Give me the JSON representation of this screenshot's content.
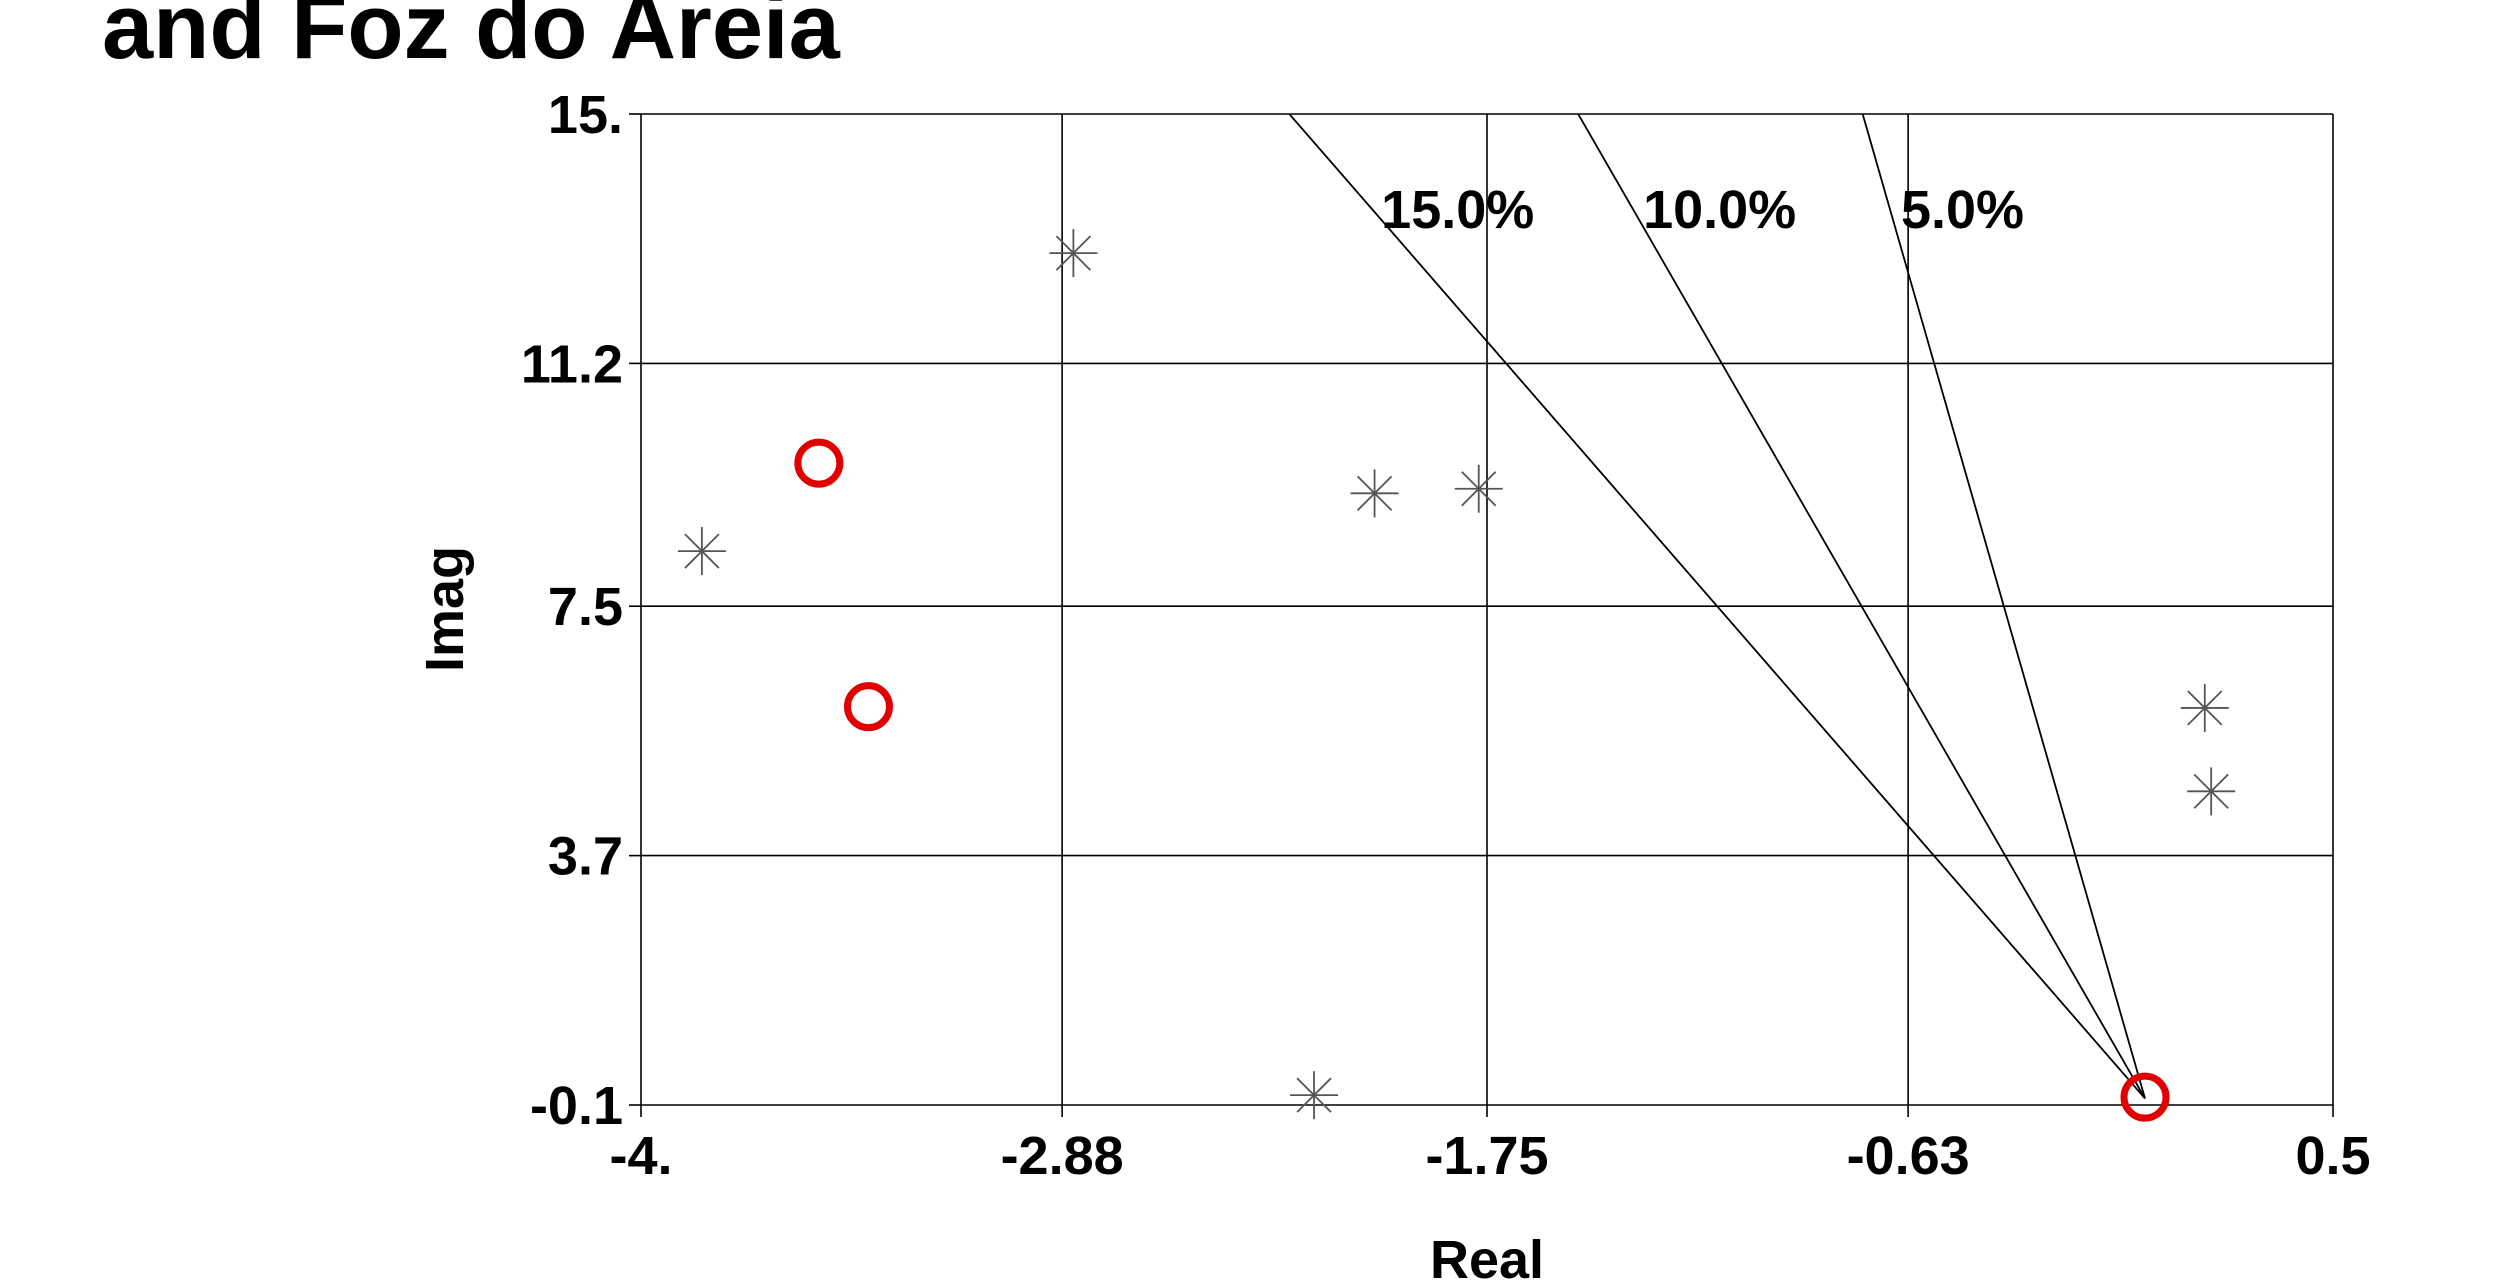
{
  "chart_data": {
    "type": "scatter",
    "title": "and Foz do Areia",
    "xlabel": "Real",
    "ylabel": "Imag",
    "xlim": [
      -4,
      0.5
    ],
    "xticks": [
      {
        "value": -4,
        "label": "-4."
      },
      -2.88,
      -1.75,
      -0.63,
      0.5
    ],
    "ylim": [
      -0.1,
      15
    ],
    "yticks": [
      -0.1,
      3.7,
      7.5,
      11.2,
      {
        "value": 15,
        "label": "15."
      }
    ],
    "grid": true,
    "damping": {
      "values": [
        15,
        10,
        5
      ],
      "value_labels": [
        "15.0%",
        "10.0%",
        "5.0%"
      ],
      "color": "#000000"
    },
    "series": [
      {
        "marker": "star",
        "color": "#555555",
        "x": [
          -2.85,
          -3.838,
          -2.049,
          -1.772,
          -2.21,
          0.159,
          0.176
        ],
        "y": [
          12.88,
          8.34,
          9.22,
          9.29,
          0.05,
          5.95,
          4.68
        ]
      },
      {
        "marker": "circle",
        "color": "#e00000",
        "x": [
          -3.527,
          -3.395,
          0.0
        ],
        "y": [
          9.68,
          5.97,
          0.02
        ]
      }
    ]
  }
}
